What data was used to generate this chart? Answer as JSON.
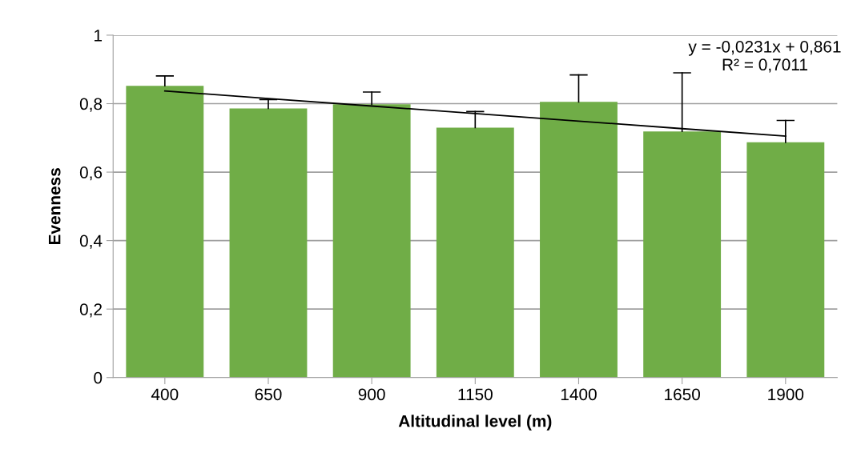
{
  "chart_data": {
    "type": "bar",
    "xlabel": "Altitudinal level (m)",
    "ylabel": "Evenness",
    "categories": [
      "400",
      "650",
      "900",
      "1150",
      "1400",
      "1650",
      "1900"
    ],
    "series": [
      {
        "color": "#70ad47",
        "values": [
          0.852,
          0.786,
          0.798,
          0.73,
          0.805,
          0.719,
          0.687
        ],
        "errors": [
          [
            0.852,
            0.881
          ],
          [
            0.786,
            0.812
          ],
          [
            0.798,
            0.834
          ],
          [
            0.73,
            0.777
          ],
          [
            0.805,
            0.884
          ],
          [
            0.719,
            0.89
          ],
          [
            0.687,
            0.751
          ]
        ]
      },
      {
        "type": "line",
        "color": "#000000",
        "values": [
          0.837,
          0.815,
          0.793,
          0.771,
          0.749,
          0.727,
          0.705
        ]
      }
    ],
    "ylim": [
      0,
      1
    ],
    "yticks": [
      0,
      {
        "value": 0.2,
        "label": "0,2"
      },
      {
        "value": 0.4,
        "label": "0,4"
      },
      {
        "value": 0.6,
        "label": "0,6"
      },
      {
        "value": 0.8,
        "label": "0,8"
      },
      1
    ],
    "grid": "y",
    "legend": false,
    "annotations": [
      "y = -0,0231x + 0,861\nR² = 0,7011"
    ]
  }
}
